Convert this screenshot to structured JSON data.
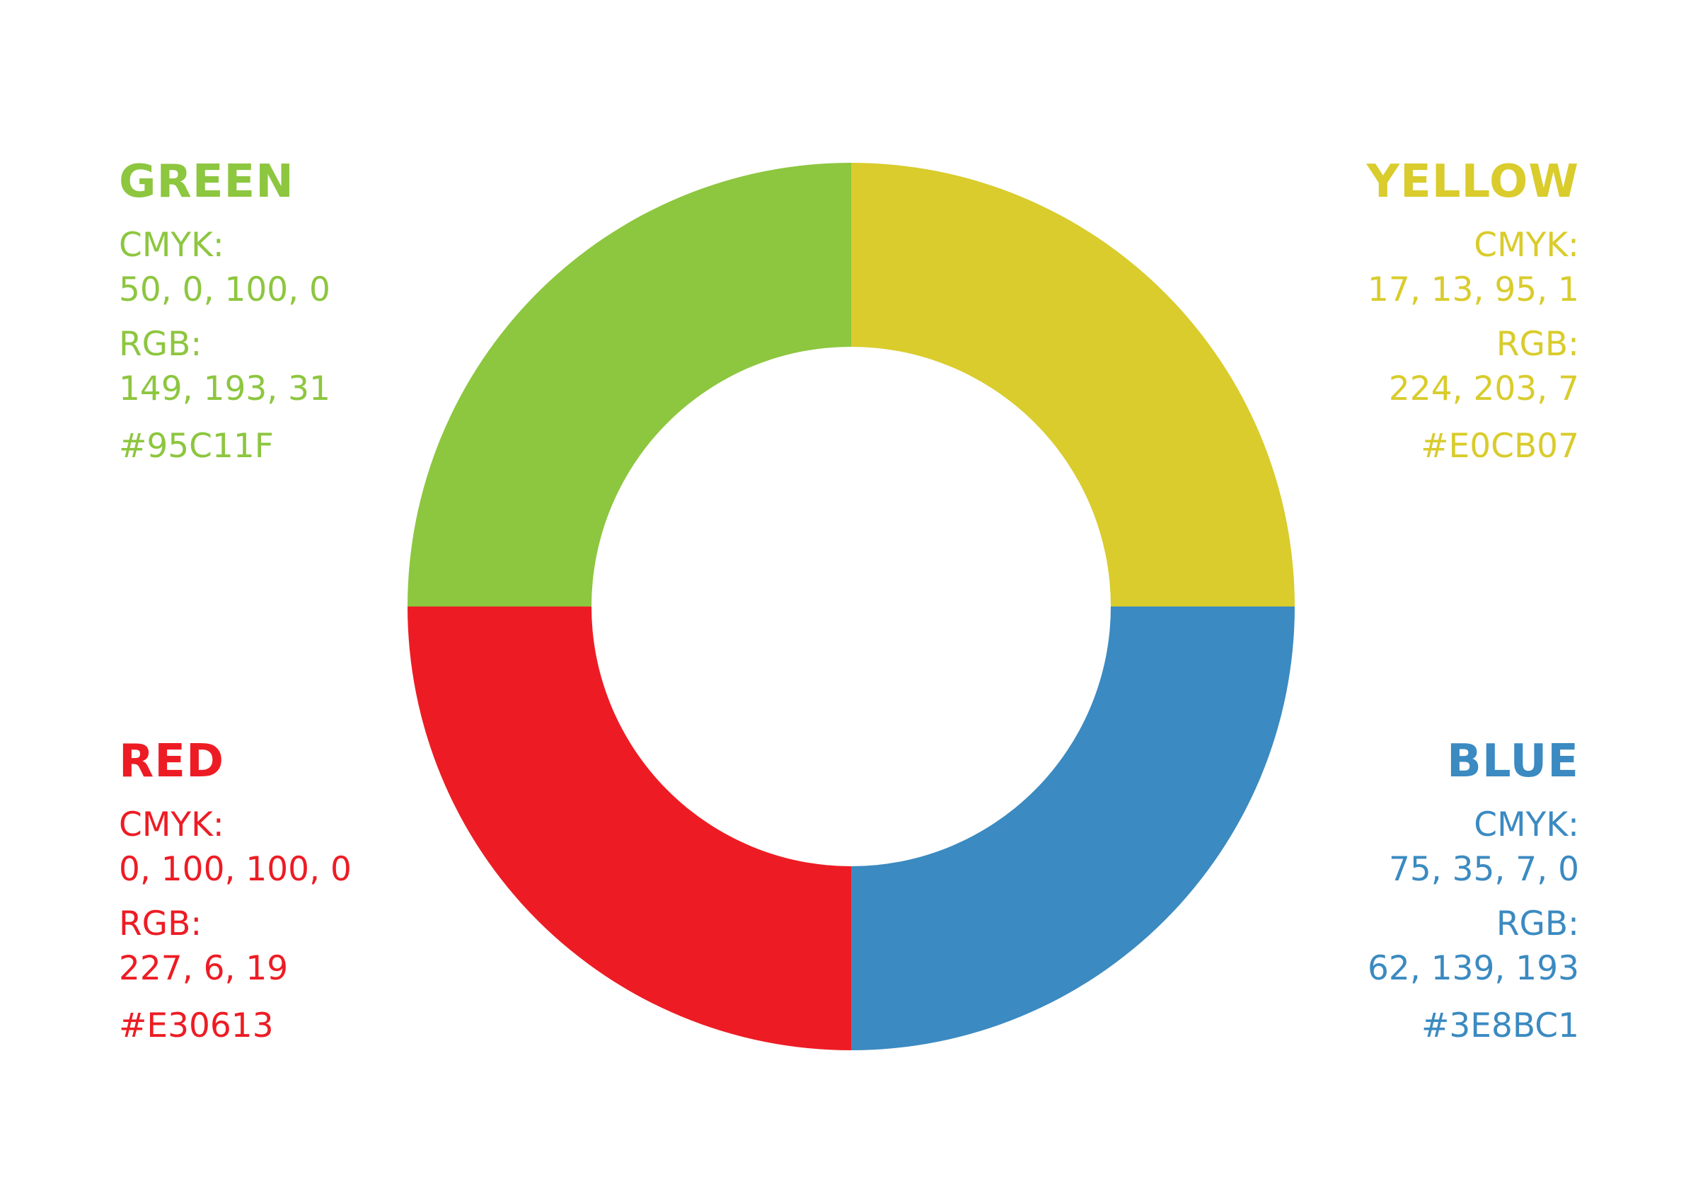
{
  "swatches": {
    "green": {
      "name": "GREEN",
      "color": "#8dc63f",
      "cmyk_label": "CMYK:",
      "cmyk": "50, 0, 100, 0",
      "rgb_label": "RGB:",
      "rgb": "149, 193, 31",
      "hex": "#95C11F"
    },
    "yellow": {
      "name": "YELLOW",
      "color": "#d9cc2c",
      "cmyk_label": "CMYK:",
      "cmyk": "17, 13, 95, 1",
      "rgb_label": "RGB:",
      "rgb": "224, 203, 7",
      "hex": "#E0CB07"
    },
    "red": {
      "name": "RED",
      "color": "#ed1c24",
      "cmyk_label": "CMYK:",
      "cmyk": "0, 100, 100, 0",
      "rgb_label": "RGB:",
      "rgb": "227, 6, 19",
      "hex": "#E30613"
    },
    "blue": {
      "name": "BLUE",
      "color": "#3b8ac1",
      "cmyk_label": "CMYK:",
      "cmyk": "75, 35, 7, 0",
      "rgb_label": "RGB:",
      "rgb": "62, 139, 193",
      "hex": "#3E8BC1"
    }
  },
  "ring_segments": [
    {
      "id": "green",
      "color": "#8dc63f",
      "start_deg": 270,
      "end_deg": 360
    },
    {
      "id": "yellow",
      "color": "#d9cc2c",
      "start_deg": 0,
      "end_deg": 90
    },
    {
      "id": "blue",
      "color": "#3b8ac1",
      "start_deg": 90,
      "end_deg": 180
    },
    {
      "id": "red",
      "color": "#ed1c24",
      "start_deg": 180,
      "end_deg": 270
    }
  ]
}
